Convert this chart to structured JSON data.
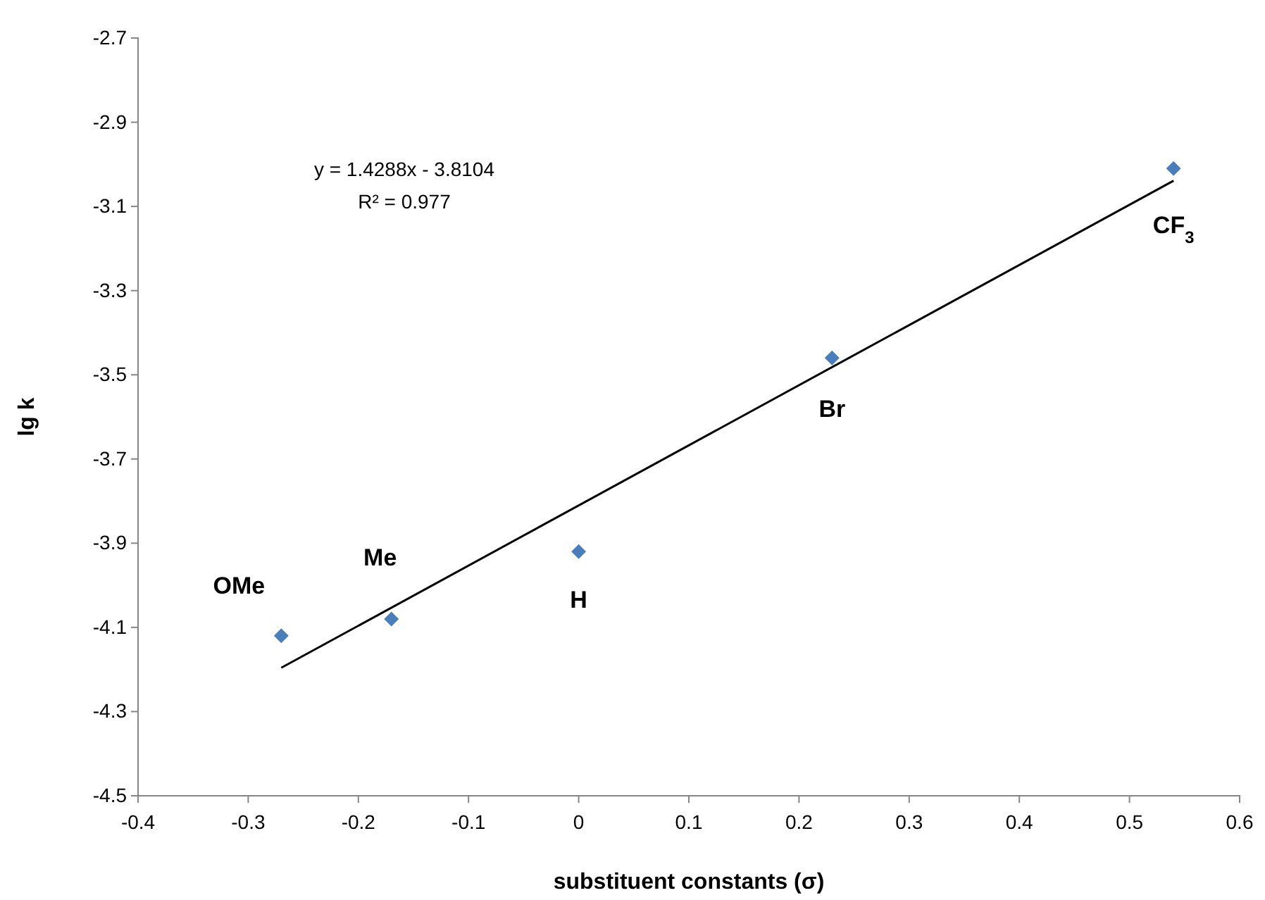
{
  "chart_data": {
    "type": "scatter",
    "xlabel": "substituent constants (σ)",
    "ylabel": "lg k",
    "xlim": [
      -0.4,
      0.6
    ],
    "xticks": [
      -0.4,
      -0.3,
      -0.2,
      -0.1,
      0,
      0.1,
      0.2,
      0.3,
      0.4,
      0.5,
      0.6
    ],
    "ylim": [
      -4.5,
      -2.7
    ],
    "yticks": [
      -4.5,
      -4.3,
      -4.1,
      -3.9,
      -3.7,
      -3.5,
      -3.3,
      -3.1,
      -2.9,
      -2.7
    ],
    "grid": false,
    "series": [
      {
        "marker": "diamond",
        "color": "#4a7ebb",
        "x": [
          -0.27,
          -0.17,
          0,
          0.23,
          0.54
        ],
        "values": [
          -4.12,
          -4.08,
          -3.92,
          -3.46,
          -3.01
        ]
      },
      {
        "type": "line",
        "color": "#000000",
        "x": [
          -0.27,
          0.54
        ],
        "values": [
          -4.196,
          -3.039
        ]
      }
    ],
    "annotations": [
      "y = 1.4288x - 3.8104",
      "R² = 0.977",
      {
        "text": "OMe",
        "x": -0.27,
        "y": -4.12
      },
      {
        "text": "Me",
        "x": -0.17,
        "y": -4.08
      },
      {
        "text": "H",
        "x": 0,
        "y": -3.92
      },
      {
        "text": "Br",
        "x": 0.23,
        "y": -3.46
      },
      {
        "text": "CF$_{3}$",
        "x": 0.54,
        "y": -3.01
      }
    ]
  }
}
